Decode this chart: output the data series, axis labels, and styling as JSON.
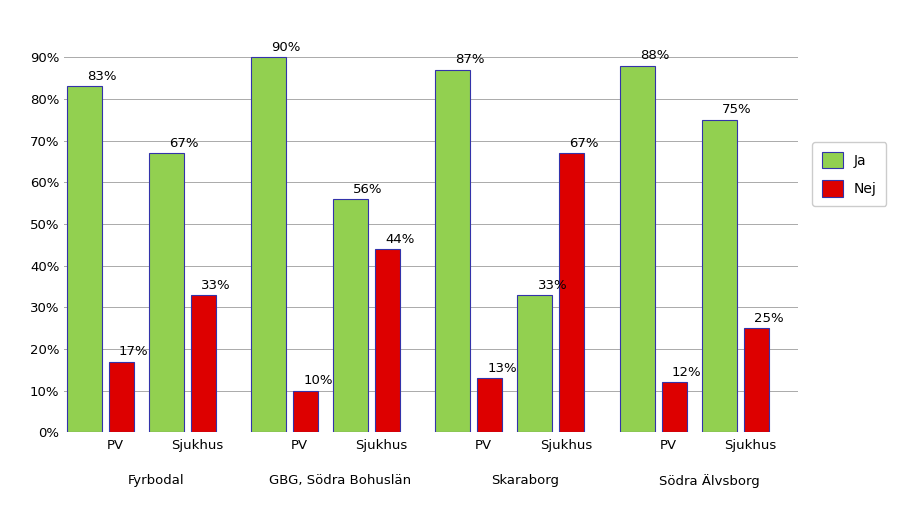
{
  "groups": [
    "Fyrbodal",
    "GBG, Södra Bohuslän",
    "Skaraborg",
    "Södra Älvsborg"
  ],
  "subgroup_labels": [
    "PV",
    "Sjukhus",
    "PV",
    "Sjukhus",
    "PV",
    "Sjukhus",
    "PV",
    "Sjukhus"
  ],
  "ja_values": [
    83,
    67,
    90,
    56,
    87,
    33,
    88,
    75
  ],
  "nej_values": [
    17,
    33,
    10,
    44,
    13,
    67,
    12,
    25
  ],
  "ja_color": "#92d050",
  "nej_color": "#dd0000",
  "bar_border_color": "#3333aa",
  "ylim": [
    0,
    100
  ],
  "yticks": [
    0,
    10,
    20,
    30,
    40,
    50,
    60,
    70,
    80,
    90
  ],
  "legend_ja": "Ja",
  "legend_nej": "Nej",
  "bg_color": "#ffffff",
  "grid_color": "#aaaaaa",
  "label_fontsize": 9.5,
  "tick_fontsize": 9.5,
  "group_label_fontsize": 9.5
}
